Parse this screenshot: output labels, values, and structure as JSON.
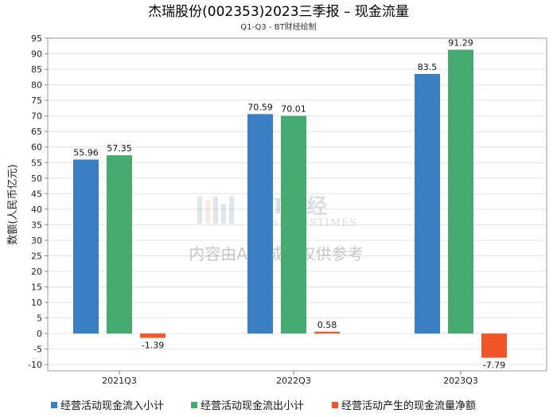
{
  "chart_data": {
    "type": "bar",
    "title": "杰瑞股份(002353)2023三季报 – 现金流量",
    "subtitle": "Q1-Q3 - BT财经绘制",
    "xlabel": "",
    "ylabel": "数额(人民币亿元)",
    "ylim": [
      -12,
      95
    ],
    "yticks": [
      -10,
      -5,
      0,
      5,
      10,
      15,
      20,
      25,
      30,
      35,
      40,
      45,
      50,
      55,
      60,
      65,
      70,
      75,
      80,
      85,
      90,
      95
    ],
    "categories": [
      "2021Q3",
      "2022Q3",
      "2023Q3"
    ],
    "series": [
      {
        "name": "经营活动现金流入小计",
        "color": "#3a7fc1",
        "values": [
          55.96,
          70.59,
          83.5
        ],
        "labels": [
          "55.96",
          "70.59",
          "83.5"
        ]
      },
      {
        "name": "经营活动现金流出小计",
        "color": "#46a96f",
        "values": [
          57.35,
          70.01,
          91.29
        ],
        "labels": [
          "57.35",
          "70.01",
          "91.29"
        ]
      },
      {
        "name": "经营活动产生的现金流量净额",
        "color": "#f0562a",
        "values": [
          -1.39,
          0.58,
          -7.79
        ],
        "labels": [
          "-1.39",
          "0.58",
          "-7.79"
        ]
      }
    ],
    "grid": true,
    "legend": "bottom"
  },
  "watermark": {
    "brand": "BT财经",
    "brand_en": "BUSINESSTIMES",
    "notice": "内容由AI生成，仅供参考"
  }
}
